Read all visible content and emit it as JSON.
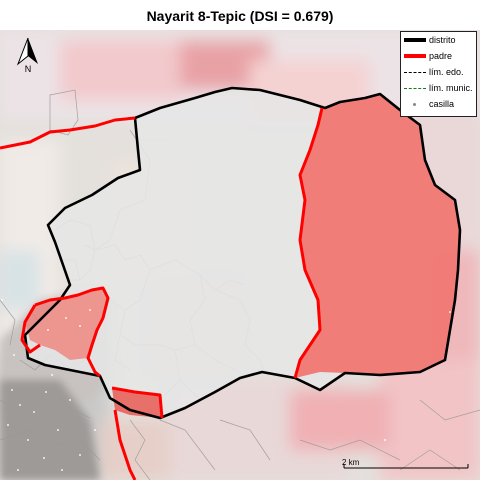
{
  "title": "Nayarit 8-Tepic (DSI = 0.679)",
  "legend": {
    "items": [
      {
        "label": "distrito",
        "color": "#000000",
        "kind": "thick-line"
      },
      {
        "label": "padre",
        "color": "#ff0000",
        "kind": "thick-line"
      },
      {
        "label": "lím. edo.",
        "color": "#000000",
        "kind": "dashed-line"
      },
      {
        "label": "lím. munic.",
        "color": "#1a7a1a",
        "kind": "dashed-line"
      },
      {
        "label": "casilla",
        "color": "#888888",
        "kind": "point"
      }
    ]
  },
  "north_arrow": {
    "label": "N",
    "icon": "north-arrow-icon"
  },
  "scale_bar": {
    "label": "2 km"
  },
  "colors": {
    "district_fill": "#e6e6e6",
    "district_outline": "#000000",
    "parent_outline": "#ff0000",
    "parent_fill": "#f2716b",
    "background": "#ffffff"
  }
}
